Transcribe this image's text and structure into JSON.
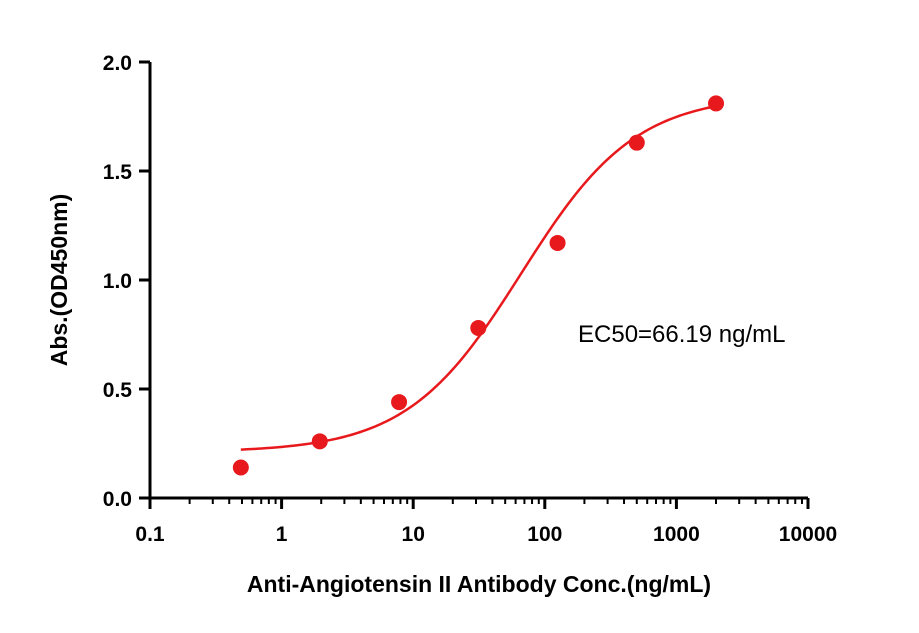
{
  "chart_data": {
    "type": "scatter",
    "xscale": "log",
    "xlabel": "Anti-Angiotensin II Antibody Conc.(ng/mL)",
    "ylabel": "Abs.(OD450nm)",
    "xlim": [
      0.1,
      10000
    ],
    "ylim": [
      0.0,
      2.0
    ],
    "xticks": [
      0.1,
      1,
      10,
      100,
      1000,
      10000
    ],
    "xtick_labels": [
      "0.1",
      "1",
      "10",
      "100",
      "1000",
      "10000"
    ],
    "yticks": [
      0.0,
      0.5,
      1.0,
      1.5,
      2.0
    ],
    "ytick_labels": [
      "0.0",
      "0.5",
      "1.0",
      "1.5",
      "2.0"
    ],
    "grid": false,
    "color": "#e8191c",
    "series": [
      {
        "x": [
          0.49,
          1.95,
          7.81,
          31.25,
          125,
          500,
          2000
        ],
        "y": [
          0.14,
          0.26,
          0.44,
          0.78,
          1.17,
          1.63,
          1.81
        ]
      }
    ],
    "fit": {
      "model": "4PL",
      "bottom": 0.21,
      "top": 1.85,
      "ec50": 66.19,
      "hill": 1.0,
      "x_range": [
        0.49,
        2000
      ]
    },
    "annotation": "EC50=66.19 ng/mL"
  }
}
